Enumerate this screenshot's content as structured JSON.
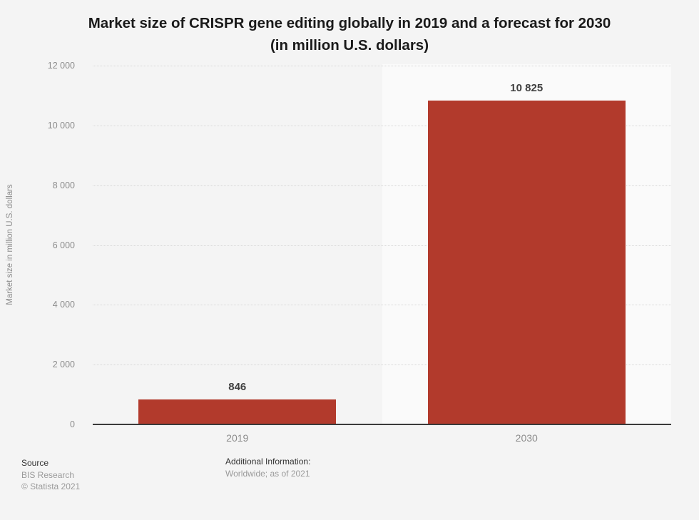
{
  "title": {
    "line1": "Market size of CRISPR gene editing globally in 2019 and a forecast for 2030",
    "line2": "(in million U.S. dollars)"
  },
  "chart_data": {
    "type": "bar",
    "categories": [
      "2019",
      "2030"
    ],
    "values": [
      846,
      10825
    ],
    "value_labels": [
      "846",
      "10 825"
    ],
    "title": "Market size of CRISPR gene editing globally in 2019 and a forecast for 2030 (in million U.S. dollars)",
    "xlabel": "",
    "ylabel": "Market size in million U.S. dollars",
    "ylim": [
      0,
      12000
    ],
    "ytick_step": 2000,
    "ytick_labels": [
      "0",
      "2 000",
      "4 000",
      "6 000",
      "8 000",
      "10 000",
      "12 000"
    ],
    "grid": "horizontal-dotted",
    "legend": "none",
    "bar_color": "#b23a2c",
    "alt_band_behind_second_category": true
  },
  "colors": {
    "page_bg": "#f4f4f4",
    "band_alt_bg": "#fafafa",
    "bar": "#b23a2c",
    "gridline": "#d8d8d8",
    "axis_line": "#3a3a3a",
    "tick_text": "#8c8c8c",
    "value_text": "#404040",
    "title_text": "#1a1a1a"
  },
  "footer": {
    "source_label": "Source",
    "source_name": "BIS Research",
    "copyright": "© Statista 2021",
    "additional_info_label": "Additional Information:",
    "additional_info_value": "Worldwide; as of 2021"
  }
}
